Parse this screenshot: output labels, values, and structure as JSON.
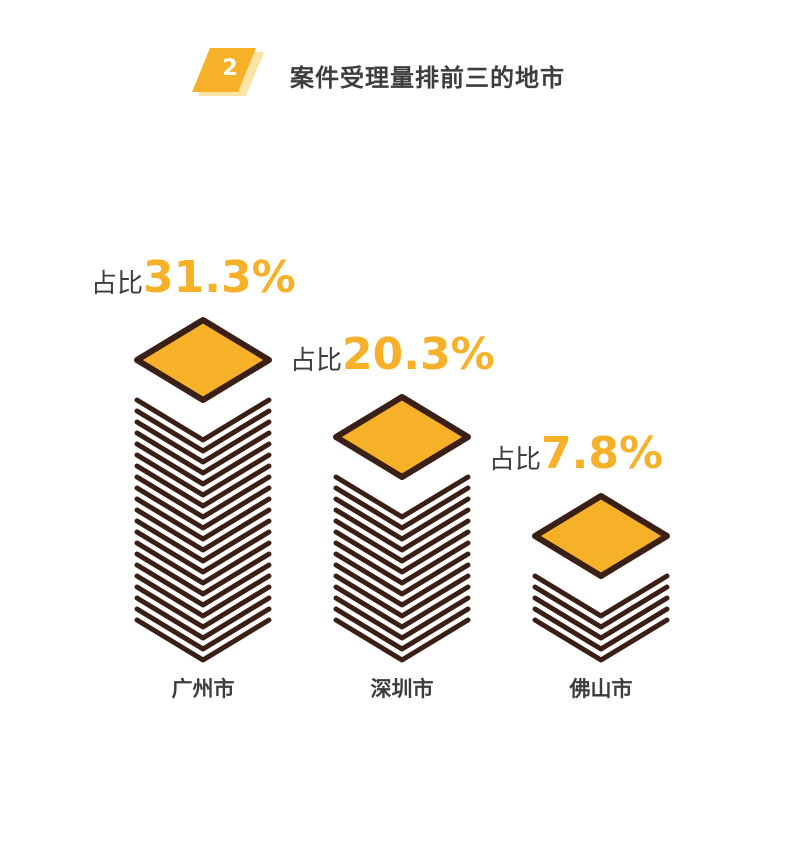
{
  "header": {
    "number": "2",
    "title": "案件受理量排前三的地市"
  },
  "colors": {
    "accent": "#f6b129",
    "badge_shadow": "#fbe3a6",
    "stack_dark": "#3a1f16",
    "text_dark": "#3d3d3d"
  },
  "chart_data": {
    "type": "bar",
    "title": "案件受理量排前三的地市",
    "categories": [
      "广州市",
      "深圳市",
      "佛山市"
    ],
    "values": [
      31.3,
      20.3,
      7.8
    ],
    "value_prefix": "占比",
    "value_labels": [
      "31.3%",
      "20.3%",
      "7.8%"
    ],
    "unit": "%"
  }
}
